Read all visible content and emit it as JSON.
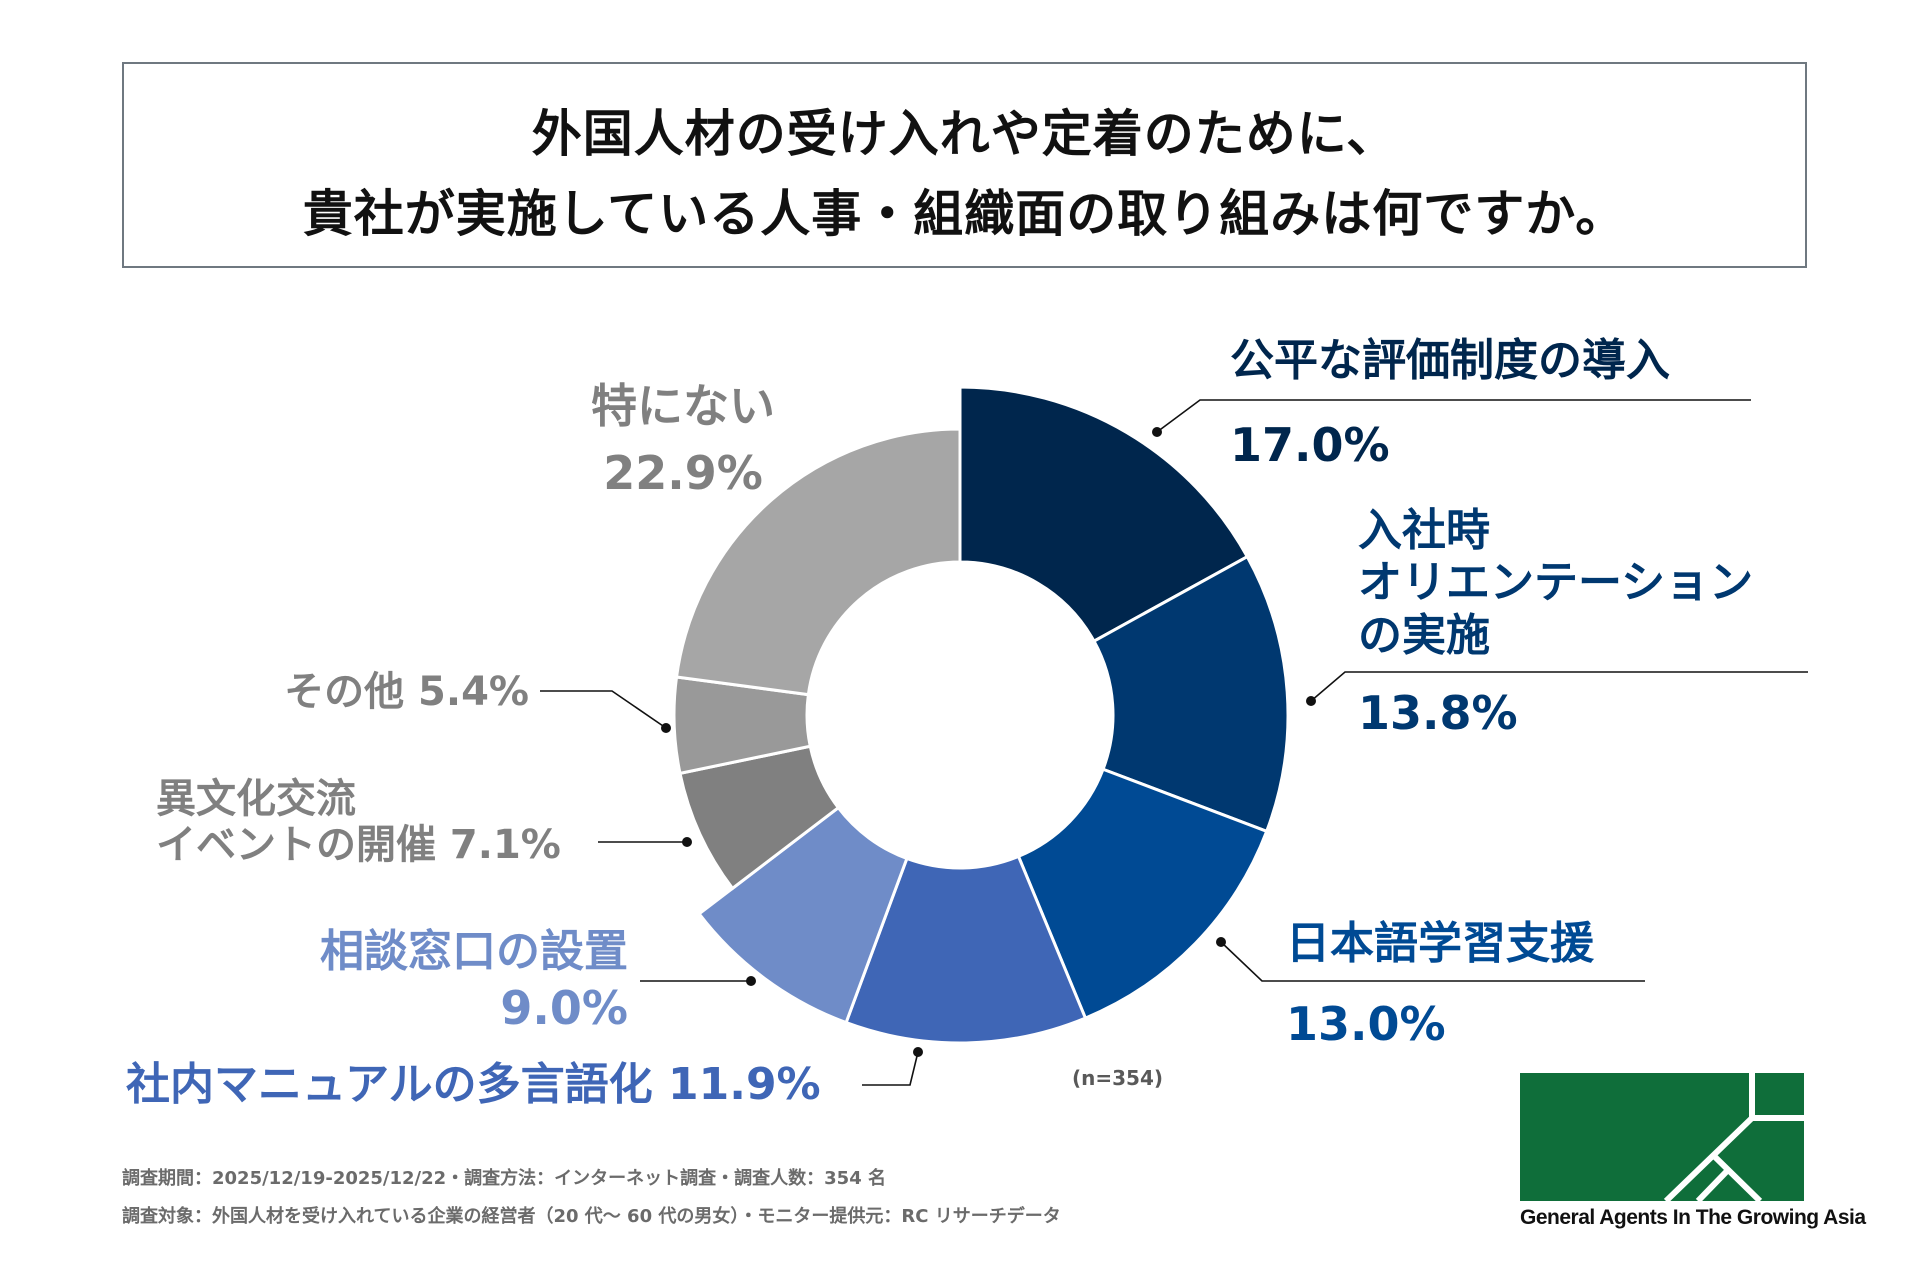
{
  "title": {
    "line1": "外国人材の受け入れや定着のために、",
    "line2": "貴社が実施している人事・組織面の取り組みは何ですか。"
  },
  "chart_data": {
    "type": "pie",
    "variant": "donut",
    "title": "外国人材の受け入れや定着のために、貴社が実施している人事・組織面の取り組みは何ですか。",
    "sample_note": "(n=354)",
    "start": "top, clockwise",
    "categories": [
      "公平な評価制度の導入",
      "入社時オリエンテーションの実施",
      "日本語学習支援",
      "社内マニュアルの多言語化",
      "相談窓口の設置",
      "異文化交流イベントの開催",
      "その他",
      "特にない"
    ],
    "values": [
      17.0,
      13.8,
      13.0,
      11.9,
      9.0,
      7.1,
      5.4,
      22.9
    ],
    "unit": "%",
    "slices": [
      {
        "label_lines": [
          "公平な評価制度の導入"
        ],
        "value_text": "17.0%",
        "value": 17.0,
        "color": "#00264d",
        "text_color": "#00264d",
        "emphasis": true
      },
      {
        "label_lines": [
          "入社時",
          "オリエンテーション",
          "の実施"
        ],
        "value_text": "13.8%",
        "value": 13.8,
        "color": "#003870",
        "text_color": "#003870",
        "emphasis": true
      },
      {
        "label_lines": [
          "日本語学習支援"
        ],
        "value_text": "13.0%",
        "value": 13.0,
        "color": "#004a94",
        "text_color": "#004a94",
        "emphasis": true
      },
      {
        "label_lines": [
          "社内マニュアルの多言語化"
        ],
        "value_text": "11.9%",
        "value": 11.9,
        "color": "#3f66b6",
        "text_color": "#3f66b6",
        "emphasis": true
      },
      {
        "label_lines": [
          "相談窓口の設置"
        ],
        "value_text": "9.0%",
        "value": 9.0,
        "color": "#6f8cc8",
        "text_color": "#6f8cc8",
        "emphasis": true
      },
      {
        "label_lines": [
          "異文化交流",
          "イベントの開催"
        ],
        "value_text": "7.1%",
        "value": 7.1,
        "color": "#808080",
        "text_color": "#808080",
        "emphasis": false
      },
      {
        "label_lines": [
          "その他"
        ],
        "value_text": "5.4%",
        "value": 5.4,
        "color": "#999999",
        "text_color": "#808080",
        "emphasis": false
      },
      {
        "label_lines": [
          "特にない"
        ],
        "value_text": "22.9%",
        "value": 22.9,
        "color": "#a6a6a6",
        "text_color": "#808080",
        "emphasis": false
      }
    ]
  },
  "note": "(n=354)",
  "footer": {
    "line1": "調査期間：2025/12/19-2025/12/22・調査方法：インターネット調査・調査人数：354 名",
    "line2": "調査対象：外国人材を受け入れている企業の経営者（20 代～ 60 代の男女）・モニター提供元：RC リサーチデータ"
  },
  "logo": {
    "text": "General Agents In The Growing Asia",
    "color": "#0f6e3a"
  }
}
